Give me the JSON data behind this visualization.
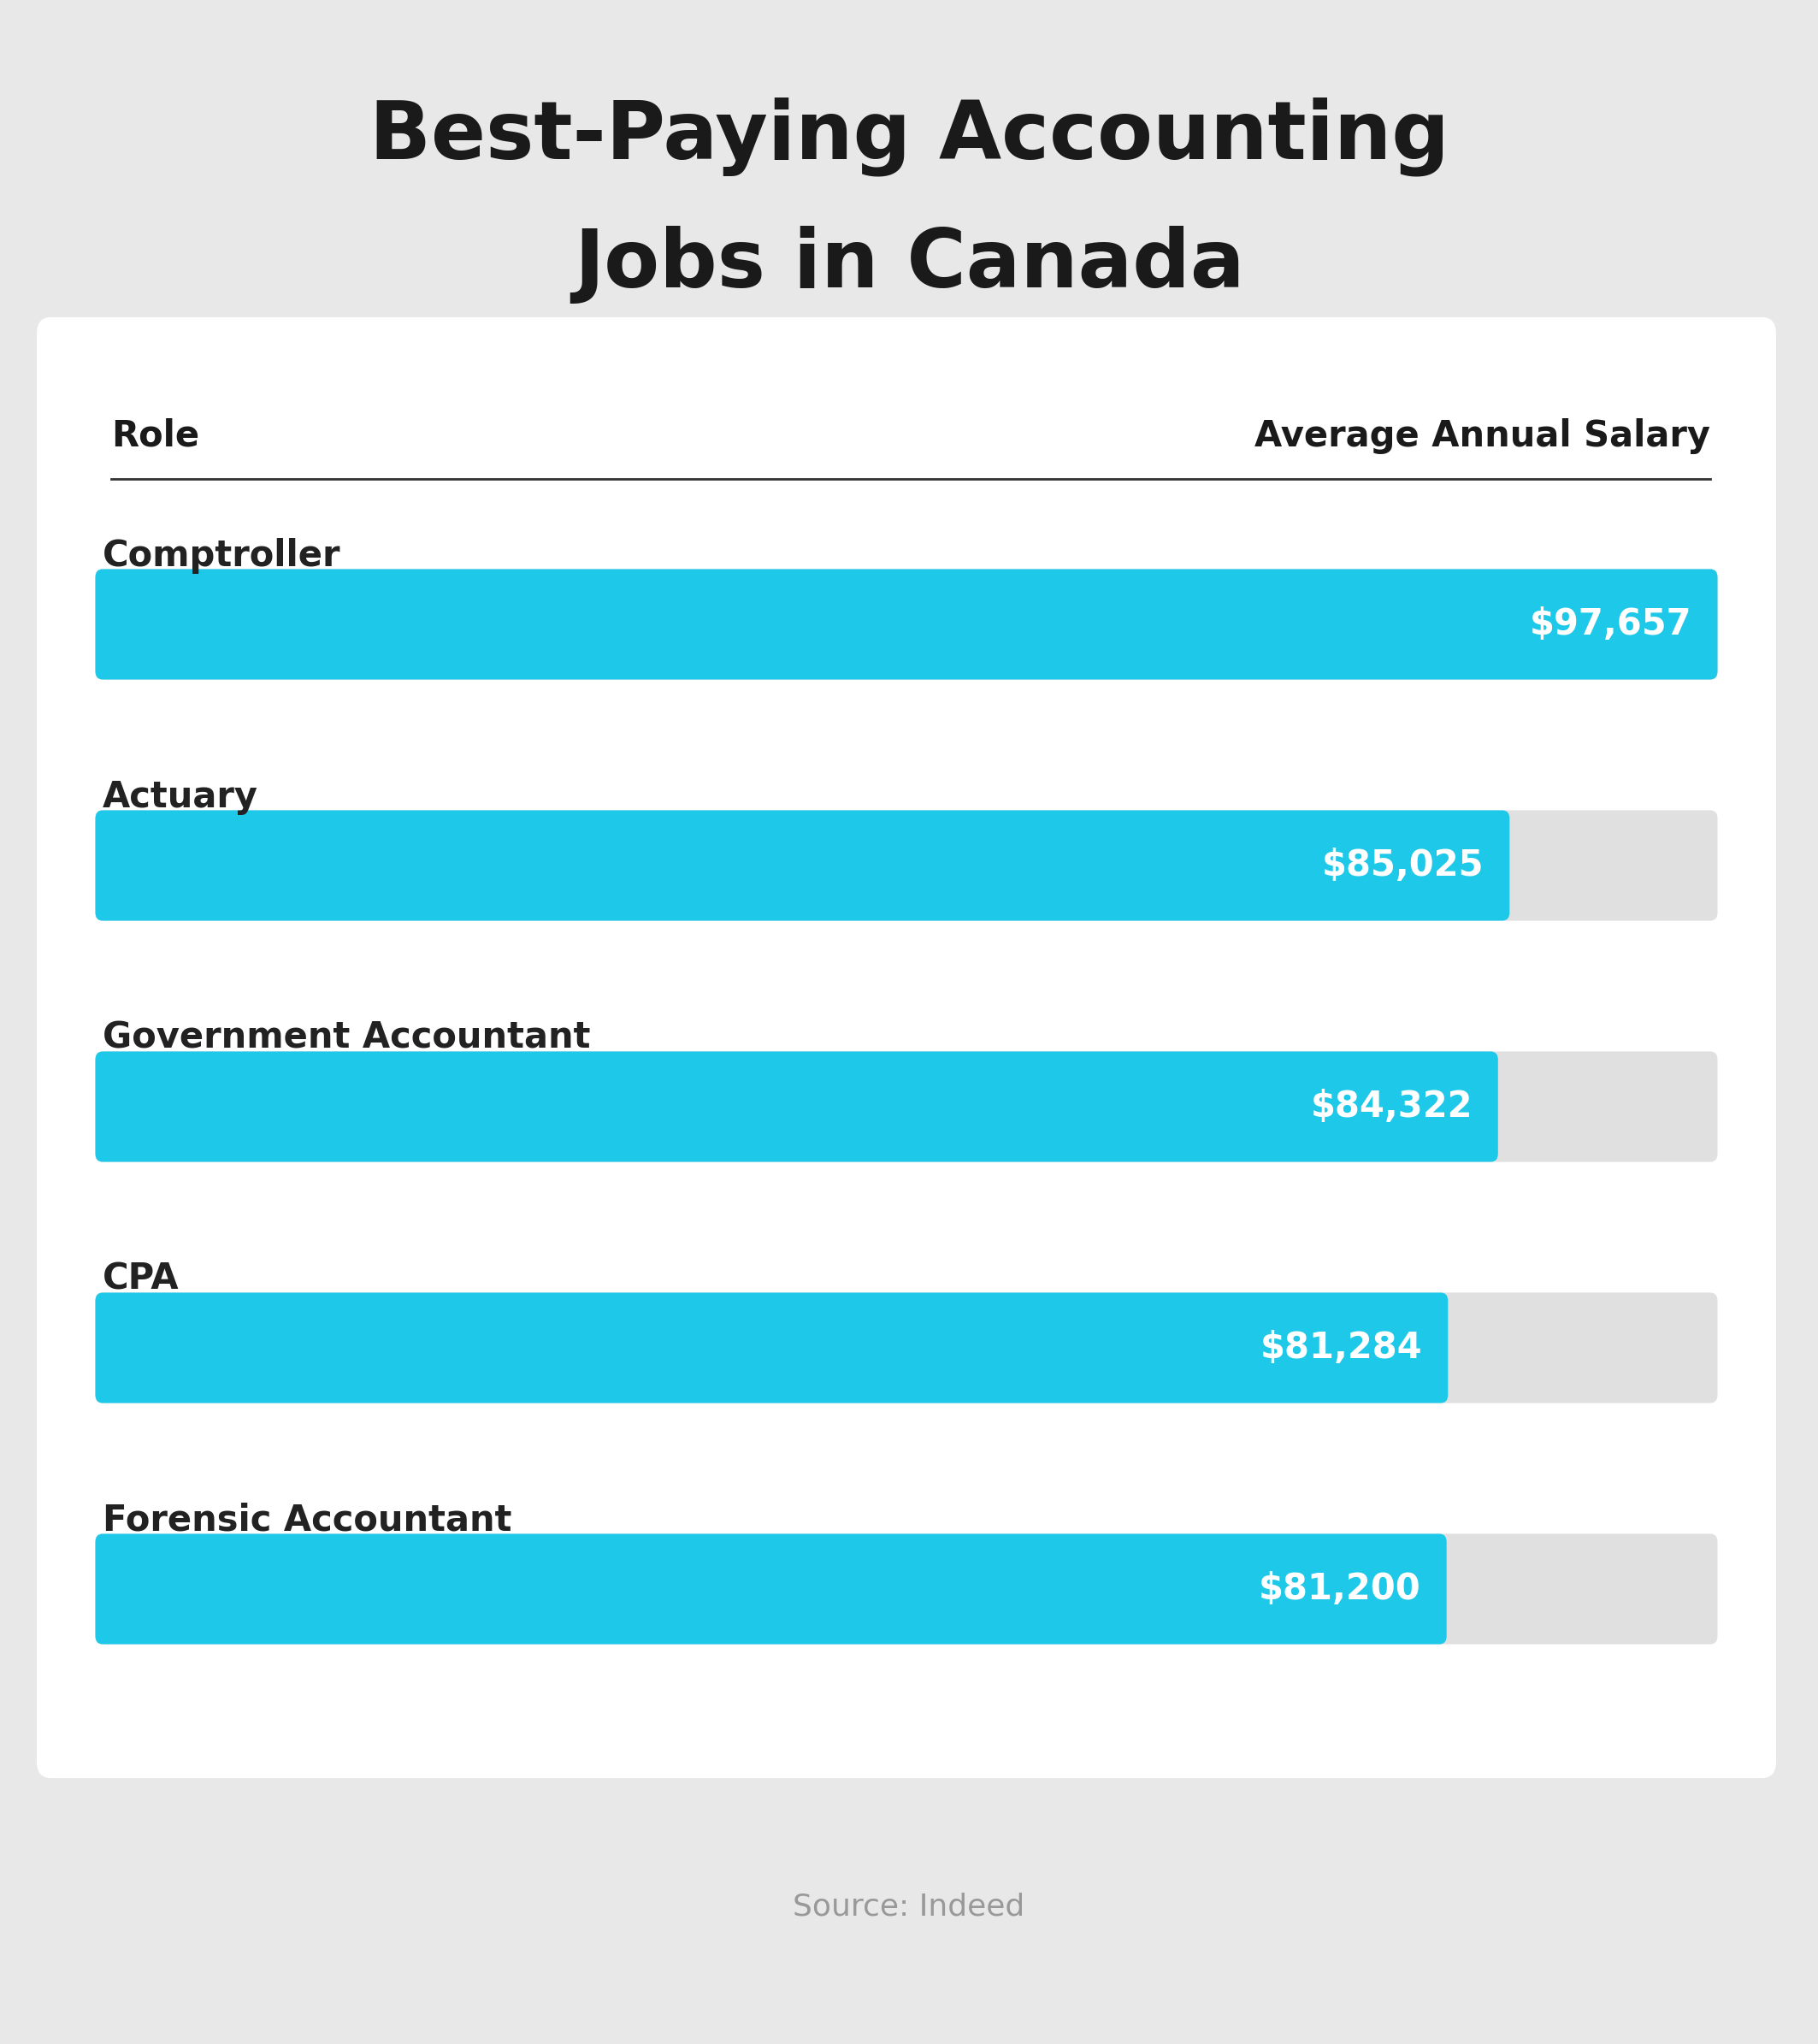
{
  "title_line1": "Best-Paying Accounting",
  "title_line2": "Jobs in Canada",
  "col_left": "Role",
  "col_right": "Average Annual Salary",
  "source": "Source: Indeed",
  "categories": [
    "Comptroller",
    "Actuary",
    "Government Accountant",
    "CPA",
    "Forensic Accountant"
  ],
  "values": [
    97657,
    85025,
    84322,
    81284,
    81200
  ],
  "labels": [
    "$97,657",
    "$85,025",
    "$84,322",
    "$81,284",
    "$81,200"
  ],
  "max_value": 97657,
  "bar_color": "#1EC8E8",
  "bg_track_color": "#E0E0E0",
  "outer_bg_color": "#E8E8E8",
  "card_bg_color": "#FFFFFF",
  "title_color": "#1a1a1a",
  "label_color": "#222222",
  "value_label_color": "#FFFFFF",
  "source_color": "#999999",
  "title_fontsize": 68,
  "col_fontsize": 30,
  "category_fontsize": 30,
  "value_fontsize": 30,
  "source_fontsize": 26
}
